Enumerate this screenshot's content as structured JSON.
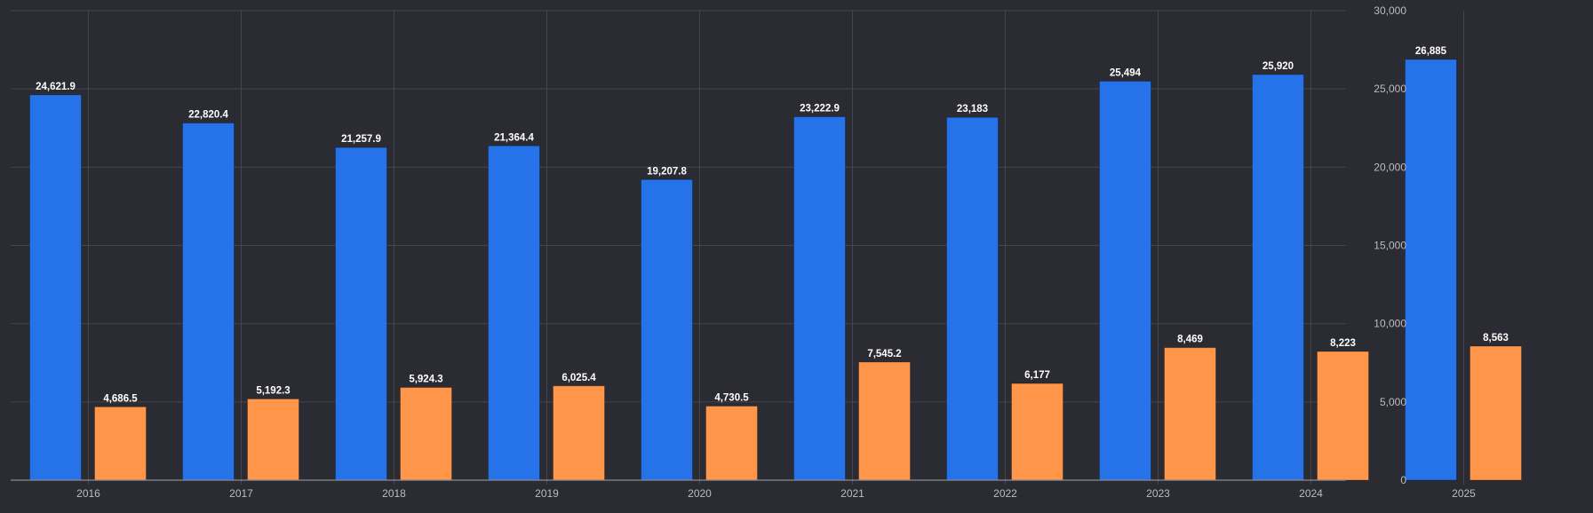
{
  "chart_data": {
    "type": "bar",
    "categories": [
      "2016",
      "2017",
      "2018",
      "2019",
      "2020",
      "2021",
      "2022",
      "2023",
      "2024",
      "2025"
    ],
    "series": [
      {
        "values": [
          24621.9,
          22820.4,
          21257.9,
          21364.4,
          19207.8,
          23222.9,
          23183,
          25494,
          25920,
          26885
        ],
        "labels": [
          "24,621.9",
          "22,820.4",
          "21,257.9",
          "21,364.4",
          "19,207.8",
          "23,222.9",
          "23,183",
          "25,494",
          "25,920",
          "26,885"
        ],
        "color": "#2672e8"
      },
      {
        "values": [
          4686.5,
          5192.3,
          5924.3,
          6025.4,
          4730.5,
          7545.2,
          6177,
          8469,
          8223,
          8563
        ],
        "labels": [
          "4,686.5",
          "5,192.3",
          "5,924.3",
          "6,025.4",
          "4,730.5",
          "7,545.2",
          "6,177",
          "8,469",
          "8,223",
          "8,563"
        ],
        "color": "#ff964a"
      }
    ],
    "ylim": [
      0,
      30000
    ],
    "yticks": [
      0,
      5000,
      10000,
      15000,
      20000,
      25000,
      30000
    ],
    "ytick_labels": [
      "0",
      "5,000",
      "10,000",
      "15,000",
      "20,000",
      "25,000",
      "30,000"
    ],
    "y_axis_position": "right",
    "grid": true,
    "legend": "none",
    "title": "",
    "xlabel": "",
    "ylabel": ""
  },
  "colors": {
    "background": "#2b2b33",
    "grid": "#45454e",
    "axis_text": "#bcbcc2",
    "value_text": "#ffffff"
  }
}
